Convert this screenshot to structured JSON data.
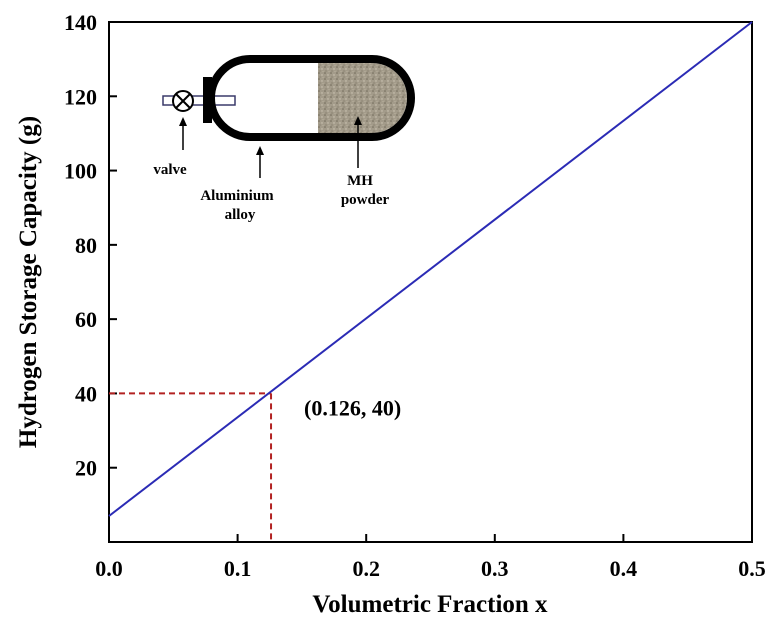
{
  "chart_data": {
    "type": "line",
    "xlabel": "Volumetric Fraction x",
    "ylabel": "Hydrogen Storage Capacity (g)",
    "xlim": [
      0.0,
      0.5
    ],
    "ylim": [
      0,
      140
    ],
    "xticks": [
      "0.0",
      "0.1",
      "0.2",
      "0.3",
      "0.4",
      "0.5"
    ],
    "yticks": [
      "20",
      "40",
      "60",
      "80",
      "100",
      "120",
      "140"
    ],
    "grid": false,
    "series": [
      {
        "x": [
          0.0,
          0.5
        ],
        "y": [
          7,
          140
        ],
        "color": "#2b2bb5"
      }
    ],
    "marker_point": {
      "x": 0.126,
      "y": 40,
      "color": "#b22222"
    },
    "annotation": "(0.126, 40)",
    "inset": {
      "labels": {
        "valve": "valve",
        "alloy_line1": "Aluminium",
        "alloy_line2": "alloy",
        "mh_line1": "MH",
        "mh_line2": "powder"
      }
    }
  }
}
